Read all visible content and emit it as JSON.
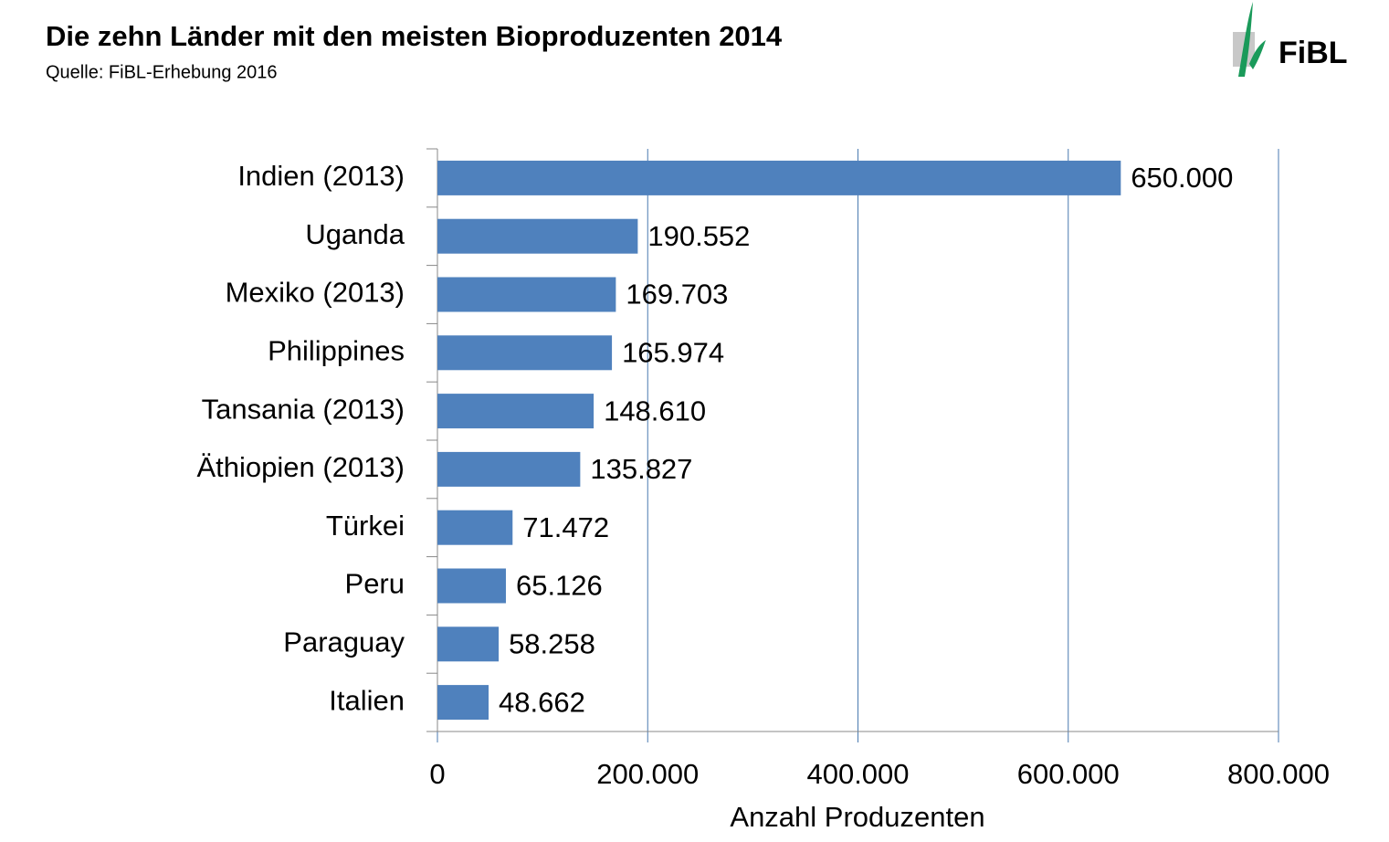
{
  "chart_data": {
    "type": "bar",
    "orientation": "horizontal",
    "title": "Die zehn Länder mit den meisten Bioproduzenten 2014",
    "subtitle": "Quelle: FiBL-Erhebung 2016",
    "logo": "FiBL",
    "x_label": "Anzahl Produzenten",
    "categories": [
      "Indien (2013)",
      "Uganda",
      "Mexiko (2013)",
      "Philippines",
      "Tansania (2013)",
      "Äthiopien (2013)",
      "Türkei",
      "Peru",
      "Paraguay",
      "Italien"
    ],
    "values": [
      650000,
      190552,
      169703,
      165974,
      148610,
      135827,
      71472,
      65126,
      58258,
      48662
    ],
    "value_labels": [
      "650.000",
      "190.552",
      "169.703",
      "165.974",
      "148.610",
      "135.827",
      "71.472",
      "65.126",
      "58.258",
      "48.662"
    ],
    "color": "#4f81bd",
    "xlim": [
      0,
      800000
    ],
    "xticks": [
      0,
      {
        "value": 200000,
        "label": "200.000"
      },
      {
        "value": 400000,
        "label": "400.000"
      },
      {
        "value": 600000,
        "label": "600.000"
      },
      {
        "value": 800000,
        "label": "800.000"
      }
    ],
    "grid": true
  }
}
